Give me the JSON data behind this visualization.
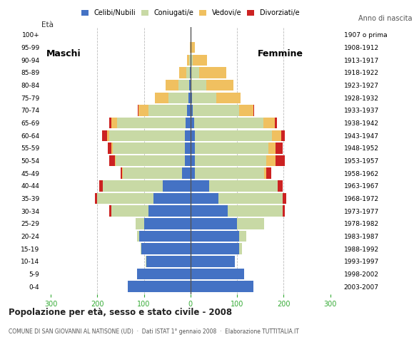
{
  "age_groups_bottom_to_top": [
    "0-4",
    "5-9",
    "10-14",
    "15-19",
    "20-24",
    "25-29",
    "30-34",
    "35-39",
    "40-44",
    "45-49",
    "50-54",
    "55-59",
    "60-64",
    "65-69",
    "70-74",
    "75-79",
    "80-84",
    "85-89",
    "90-94",
    "95-99",
    "100+"
  ],
  "birth_years_bottom_to_top": [
    "2003-2007",
    "1998-2002",
    "1993-1997",
    "1988-1992",
    "1983-1987",
    "1978-1982",
    "1973-1977",
    "1968-1972",
    "1963-1967",
    "1958-1962",
    "1953-1957",
    "1948-1952",
    "1943-1947",
    "1938-1942",
    "1933-1937",
    "1928-1932",
    "1923-1927",
    "1918-1922",
    "1913-1917",
    "1908-1912",
    "1907 o prima"
  ],
  "colors": {
    "celibe": "#4472c4",
    "coniugato": "#c8d9a5",
    "vedovo": "#f0c060",
    "divorziato": "#cc2222"
  },
  "maschi_celibe": [
    135,
    115,
    95,
    105,
    110,
    100,
    90,
    80,
    60,
    18,
    12,
    12,
    12,
    10,
    8,
    5,
    3,
    1,
    0,
    0,
    0
  ],
  "maschi_coniugato": [
    0,
    0,
    1,
    2,
    5,
    18,
    80,
    120,
    128,
    128,
    148,
    155,
    162,
    148,
    82,
    42,
    22,
    8,
    2,
    0,
    0
  ],
  "maschi_vedovo": [
    0,
    0,
    0,
    0,
    0,
    0,
    0,
    0,
    0,
    1,
    2,
    3,
    5,
    12,
    22,
    30,
    28,
    15,
    6,
    1,
    0
  ],
  "maschi_divorziato": [
    0,
    0,
    0,
    0,
    0,
    0,
    5,
    5,
    8,
    3,
    12,
    8,
    10,
    5,
    1,
    0,
    0,
    0,
    0,
    0,
    0
  ],
  "femmine_celibe": [
    135,
    115,
    95,
    105,
    105,
    100,
    80,
    60,
    40,
    10,
    10,
    10,
    10,
    8,
    5,
    3,
    2,
    1,
    0,
    0,
    0
  ],
  "femmine_coniugato": [
    0,
    0,
    1,
    5,
    15,
    58,
    118,
    138,
    148,
    148,
    152,
    158,
    165,
    148,
    100,
    52,
    32,
    18,
    5,
    1,
    0
  ],
  "femmine_vedovo": [
    0,
    0,
    0,
    0,
    0,
    0,
    0,
    0,
    0,
    5,
    20,
    15,
    20,
    25,
    30,
    52,
    58,
    58,
    30,
    8,
    2
  ],
  "femmine_divorziato": [
    0,
    0,
    0,
    0,
    0,
    0,
    5,
    8,
    10,
    10,
    20,
    15,
    8,
    5,
    2,
    1,
    0,
    0,
    0,
    0,
    0
  ],
  "title": "Popolazione per età, sesso e stato civile - 2008",
  "subtitle": "COMUNE DI SAN GIOVANNI AL NATISONE (UD)  ·  Dati ISTAT 1° gennaio 2008  ·  Elaborazione TUTTITALIA.IT",
  "bg_color": "#ffffff",
  "bar_height": 0.88,
  "xlim": 320,
  "xtick_color": "#33aa33",
  "label_eta": "Età",
  "label_anno": "Anno di nascita",
  "label_maschi": "Maschi",
  "label_femmine": "Femmine"
}
